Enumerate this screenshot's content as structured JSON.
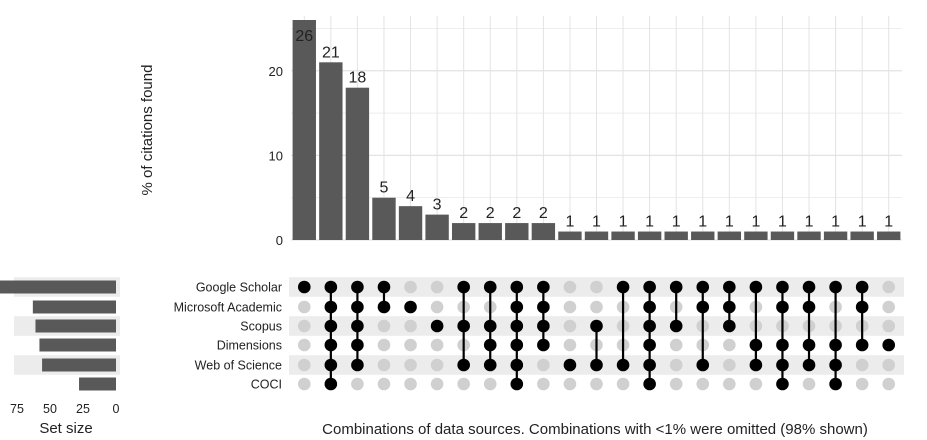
{
  "chart_data": {
    "type": "upset",
    "ylabel": "% of citations found",
    "ylim": [
      0,
      26
    ],
    "yticks": [
      "0",
      "10",
      "20"
    ],
    "xlabel": "Combinations of data sources. Combinations with <1% were omitted (98% shown)",
    "set_size_label": "Set size",
    "set_size_ticks": [
      "75",
      "50",
      "25",
      "0"
    ],
    "set_size_max": 75,
    "sets": [
      "Google Scholar",
      "Microsoft Academic",
      "Scopus",
      "Dimensions",
      "Web of Science",
      "COCI"
    ],
    "set_sizes": [
      93,
      63,
      61,
      58,
      56,
      28
    ],
    "bar_values": [
      26,
      21,
      18,
      5,
      4,
      3,
      2,
      2,
      2,
      2,
      1,
      1,
      1,
      1,
      1,
      1,
      1,
      1,
      1,
      1,
      1,
      1,
      1
    ],
    "bar_labels": [
      "26",
      "21",
      "18",
      "5",
      "4",
      "3",
      "2",
      "2",
      "2",
      "2",
      "1",
      "1",
      "1",
      "1",
      "1",
      "1",
      "1",
      "1",
      "1",
      "1",
      "1",
      "1",
      "1"
    ],
    "combinations": [
      [
        0
      ],
      [
        0,
        1,
        2,
        3,
        4,
        5
      ],
      [
        0,
        1,
        2,
        3,
        4
      ],
      [
        0,
        1
      ],
      [
        1
      ],
      [
        2
      ],
      [
        0,
        2,
        4
      ],
      [
        0,
        2,
        3,
        4
      ],
      [
        0,
        1,
        2,
        3,
        4,
        5
      ],
      [
        0,
        1,
        2,
        3
      ],
      [
        4
      ],
      [
        2,
        4
      ],
      [
        0,
        4
      ],
      [
        0,
        1,
        2,
        3,
        4,
        5
      ],
      [
        0,
        2
      ],
      [
        0,
        1,
        4
      ],
      [
        0,
        1,
        2
      ],
      [
        0,
        3,
        4
      ],
      [
        0,
        1,
        3,
        4,
        5
      ],
      [
        0,
        1,
        3,
        4
      ],
      [
        0,
        3,
        4,
        5
      ],
      [
        0,
        1,
        3
      ],
      [
        3
      ]
    ],
    "colors": {
      "bar": "#595959",
      "dot_on": "#000000",
      "dot_off": "#d0d0d0",
      "stripe": "#ececec",
      "grid": "#e3e3e3"
    }
  }
}
